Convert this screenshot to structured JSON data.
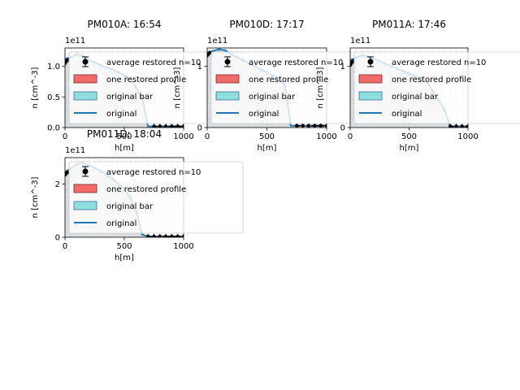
{
  "legend": {
    "entries": [
      {
        "label": "average restored n=10",
        "kind": "errorbar",
        "color": "#000000"
      },
      {
        "label": "one restored profile",
        "kind": "patch",
        "face": "#f26b6b",
        "edge": "#7a2a2a"
      },
      {
        "label": "original bar",
        "kind": "patch",
        "face": "#8fdede",
        "edge": "#3c6fa0"
      },
      {
        "label": "original",
        "kind": "line",
        "color": "#1f77b4"
      }
    ]
  },
  "colors": {
    "original": "#1f77b4",
    "restored_fill": "#d9dde1",
    "restored_point": "#b4bcc4",
    "average": "#000000",
    "grid": "#c8c8c8"
  },
  "chart_data": [
    {
      "type": "bar",
      "title": "PM010A: 16:54",
      "xlabel": "h[m]",
      "ylabel": "n [cm^-3]",
      "y_offset_text": "1e11",
      "xlim": [
        0,
        1000
      ],
      "ylim": [
        0,
        1.3
      ],
      "xticks": [
        "0",
        "500",
        "1000"
      ],
      "yticks": [
        "0.0",
        "0.5",
        "1.0"
      ],
      "ytick_values": [
        0,
        0.5,
        1.0
      ],
      "grid": true,
      "legend_position": "upper-right",
      "series": [
        {
          "name": "original",
          "x": [
            0,
            50,
            100,
            150,
            200,
            250,
            300,
            350,
            400,
            450,
            500,
            550,
            600,
            650,
            700,
            750,
            800,
            850,
            900,
            950,
            1000
          ],
          "values": [
            1.12,
            1.15,
            1.2,
            1.17,
            1.1,
            1.06,
            1.02,
            0.98,
            0.95,
            0.9,
            0.85,
            0.8,
            0.65,
            0.5,
            0.02,
            0.02,
            0.02,
            0.02,
            0.02,
            0.02,
            0.02
          ]
        },
        {
          "name": "average restored n=10",
          "x": [
            0,
            10,
            20,
            750,
            800,
            850,
            900,
            950,
            1000
          ],
          "values": [
            1.05,
            1.08,
            1.1,
            0.02,
            0.02,
            0.02,
            0.02,
            0.02,
            0.02
          ]
        }
      ]
    },
    {
      "type": "bar",
      "title": "PM010D: 17:17",
      "xlabel": "h[m]",
      "ylabel": "n [cm^-3]",
      "y_offset_text": "1e11",
      "xlim": [
        0,
        1000
      ],
      "ylim": [
        0,
        1.3
      ],
      "xticks": [
        "0",
        "500",
        "1000"
      ],
      "yticks": [
        "0",
        "1"
      ],
      "ytick_values": [
        0,
        1
      ],
      "grid": true,
      "legend_position": "upper-right",
      "series": [
        {
          "name": "original",
          "x": [
            0,
            50,
            100,
            150,
            200,
            250,
            300,
            350,
            400,
            450,
            500,
            550,
            600,
            650,
            700,
            750,
            800,
            850,
            900,
            950,
            1000
          ],
          "values": [
            1.22,
            1.25,
            1.28,
            1.26,
            1.2,
            1.15,
            1.1,
            1.05,
            1.0,
            0.95,
            0.9,
            0.85,
            0.8,
            0.7,
            0.03,
            0.03,
            0.03,
            0.03,
            0.03,
            0.03,
            0.03
          ]
        },
        {
          "name": "average restored n=10",
          "x": [
            0,
            10,
            20,
            750,
            800,
            850,
            900,
            950,
            1000
          ],
          "values": [
            1.18,
            1.2,
            1.22,
            0.03,
            0.03,
            0.03,
            0.03,
            0.03,
            0.03
          ]
        }
      ]
    },
    {
      "type": "bar",
      "title": "PM011A: 17:46",
      "xlabel": "h[m]",
      "ylabel": "n [cm^-3]",
      "y_offset_text": "1e11",
      "xlim": [
        0,
        1000
      ],
      "ylim": [
        0,
        1.3
      ],
      "xticks": [
        "0",
        "500",
        "1000"
      ],
      "yticks": [
        "0",
        "1"
      ],
      "ytick_values": [
        0,
        1
      ],
      "grid": true,
      "legend_position": "upper-right",
      "series": [
        {
          "name": "original",
          "x": [
            0,
            50,
            100,
            150,
            200,
            250,
            300,
            350,
            400,
            450,
            500,
            550,
            600,
            650,
            700,
            750,
            800,
            850,
            900,
            950,
            1000
          ],
          "values": [
            1.1,
            1.14,
            1.18,
            1.16,
            1.12,
            1.08,
            1.04,
            1.0,
            0.96,
            0.92,
            0.88,
            0.84,
            0.8,
            0.75,
            0.6,
            0.45,
            0.3,
            0.02,
            0.02,
            0.02,
            0.02
          ]
        },
        {
          "name": "average restored n=10",
          "x": [
            0,
            10,
            20,
            850,
            900,
            950,
            1000
          ],
          "values": [
            1.02,
            1.05,
            1.08,
            0.02,
            0.02,
            0.02,
            0.02
          ]
        }
      ]
    },
    {
      "type": "bar",
      "title": "PM011D: 18:04",
      "xlabel": "h[m]",
      "ylabel": "n [cm^-3]",
      "y_offset_text": "1e11",
      "xlim": [
        0,
        1000
      ],
      "ylim": [
        0,
        3.0
      ],
      "xticks": [
        "0",
        "500",
        "1000"
      ],
      "yticks": [
        "0",
        "2"
      ],
      "ytick_values": [
        0,
        2
      ],
      "grid": true,
      "legend_position": "upper-right",
      "series": [
        {
          "name": "original",
          "x": [
            0,
            50,
            100,
            150,
            200,
            250,
            300,
            350,
            400,
            450,
            500,
            550,
            600,
            650,
            700,
            750,
            800,
            850,
            900,
            950,
            1000
          ],
          "values": [
            2.45,
            2.6,
            2.75,
            2.8,
            2.72,
            2.6,
            2.5,
            2.35,
            2.2,
            2.0,
            1.8,
            1.5,
            1.0,
            0.1,
            0.03,
            0.03,
            0.03,
            0.03,
            0.03,
            0.03,
            0.03
          ]
        },
        {
          "name": "average restored n=10",
          "x": [
            0,
            10,
            20,
            700,
            750,
            800,
            850,
            900,
            950,
            1000
          ],
          "values": [
            2.35,
            2.4,
            2.45,
            0.03,
            0.03,
            0.03,
            0.03,
            0.03,
            0.03,
            0.03
          ]
        }
      ]
    }
  ]
}
